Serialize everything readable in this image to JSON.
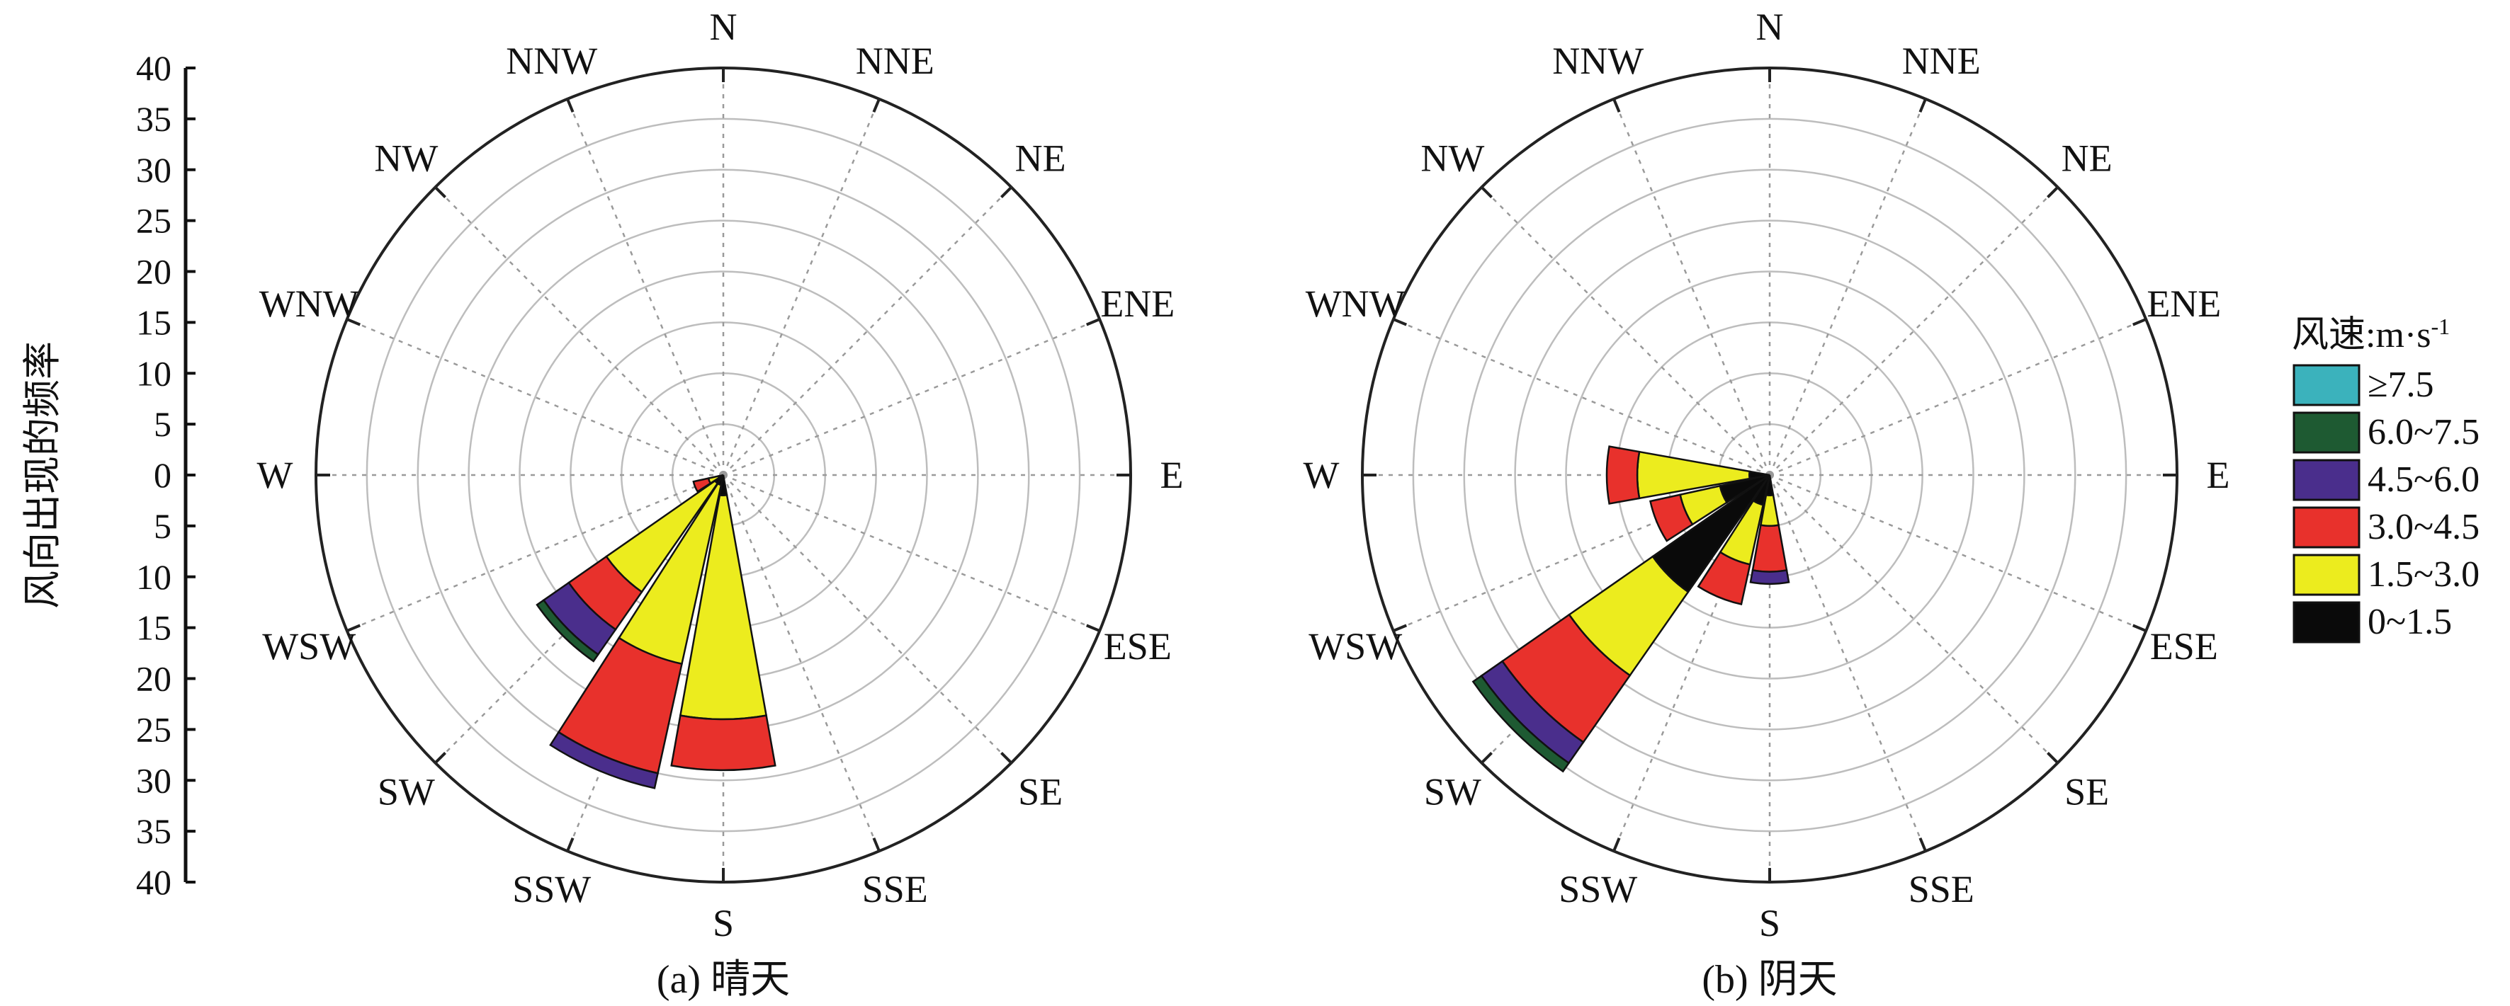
{
  "chart_data": {
    "type": "wind-rose",
    "frequency_axis": {
      "label": "风向出现的频率",
      "range": [
        0,
        40
      ],
      "ticks_upper": [
        "40",
        "35",
        "30",
        "25",
        "20",
        "15",
        "10",
        "5",
        "0"
      ],
      "ticks_lower": [
        "5",
        "10",
        "15",
        "20",
        "25",
        "30",
        "35",
        "40"
      ]
    },
    "directions": [
      "N",
      "NNE",
      "NE",
      "ENE",
      "E",
      "ESE",
      "SE",
      "SSE",
      "S",
      "SSW",
      "SW",
      "WSW",
      "W",
      "WNW",
      "NW",
      "NNW"
    ],
    "speed_classes": [
      {
        "label": "0~1.5",
        "color": "#0a0a0a"
      },
      {
        "label": "1.5~3.0",
        "color": "#ecec1e"
      },
      {
        "label": "3.0~4.5",
        "color": "#e8312c"
      },
      {
        "label": "4.5~6.0",
        "color": "#4a2e8c"
      },
      {
        "label": "6.0~7.5",
        "color": "#1e5a32"
      },
      {
        "label": "≥7.5",
        "color": "#3bb2bc"
      }
    ],
    "legend": {
      "title": "风速:m·s",
      "title_sup": "-1",
      "position": "right"
    },
    "panels": [
      {
        "caption": "(a) 晴天",
        "sectors": [
          {
            "direction": "S",
            "values": [
              2,
              22,
              5,
              0,
              0,
              0
            ]
          },
          {
            "direction": "SSW",
            "values": [
              1,
              18,
              11,
              1.5,
              0,
              0
            ]
          },
          {
            "direction": "SW",
            "values": [
              1,
              13,
              4.5,
              3,
              0.8,
              0
            ]
          },
          {
            "direction": "WSW",
            "values": [
              0.5,
              1,
              1.5,
              0,
              0,
              0
            ]
          }
        ]
      },
      {
        "caption": "(b) 阴天",
        "sectors": [
          {
            "direction": "S",
            "values": [
              2,
              3,
              4.5,
              1.2,
              0,
              0
            ]
          },
          {
            "direction": "SSW",
            "values": [
              3,
              6,
              4,
              0,
              0,
              0
            ]
          },
          {
            "direction": "SW",
            "values": [
              14,
              10,
              8,
              2.5,
              1,
              0
            ]
          },
          {
            "direction": "WSW",
            "values": [
              5,
              4,
              3,
              0,
              0,
              0
            ]
          },
          {
            "direction": "W",
            "values": [
              2,
              11,
              3,
              0,
              0,
              0
            ]
          }
        ]
      }
    ]
  }
}
